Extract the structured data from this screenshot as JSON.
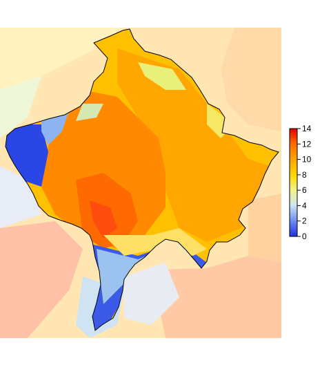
{
  "map": {
    "type": "raster-heatmap",
    "region_outlined": true
  },
  "legend": {
    "min": 0,
    "max": 14,
    "ticks": [
      "0",
      "2",
      "4",
      "6",
      "8",
      "10",
      "12",
      "14"
    ],
    "colors": [
      "#1f2fe0",
      "#6a8cf2",
      "#cfe6ee",
      "#f2f28a",
      "#ffd700",
      "#ffa500",
      "#ff7a00",
      "#ff3a1a",
      "#e00000"
    ],
    "placement": "right"
  }
}
